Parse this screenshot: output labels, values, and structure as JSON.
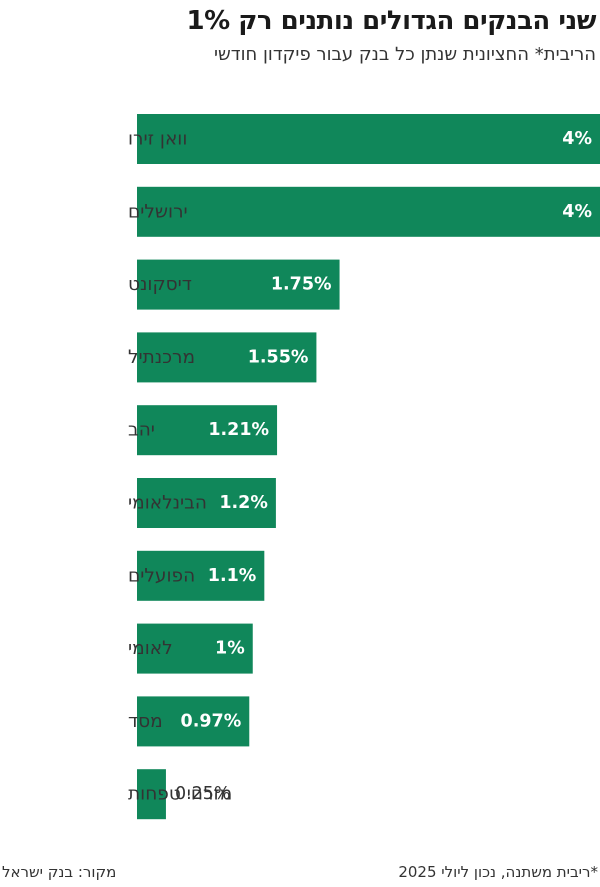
{
  "title": "שני הבנקים הגדולים נותנים רק 1%",
  "subtitle": "הריבית* החציונית שנתן כל בנק עבור פיקדון חודשי",
  "footer": {
    "source": "מקור: בנק ישראל",
    "note": "*ריבית משתנה, נכון ליולי 2025"
  },
  "colors": {
    "bar": "#10875a",
    "value_text": "#ffffff",
    "outside_text": "#333333"
  },
  "chart_data": {
    "type": "bar",
    "orientation": "horizontal",
    "title": "שני הבנקים הגדולים נותנים רק 1%",
    "subtitle": "הריבית* החציונית שנתן כל בנק עבור פיקדון חודשי",
    "unit": "%",
    "categories": [
      "וואן זירו",
      "ירושלים",
      "דיסקונט",
      "מרכנתיל",
      "יהב",
      "הבינלאומי",
      "הפועלים",
      "לאומי",
      "מסד",
      "מזרחי טפחות"
    ],
    "values": [
      4,
      4,
      1.75,
      1.55,
      1.21,
      1.2,
      1.1,
      1,
      0.97,
      0.25
    ],
    "value_labels": [
      "4%",
      "4%",
      "1.75%",
      "1.55%",
      "1.21%",
      "1.2%",
      "1.1%",
      "1%",
      "0.97%",
      "0.25%"
    ],
    "xlim": [
      0,
      4
    ],
    "grid": false
  }
}
